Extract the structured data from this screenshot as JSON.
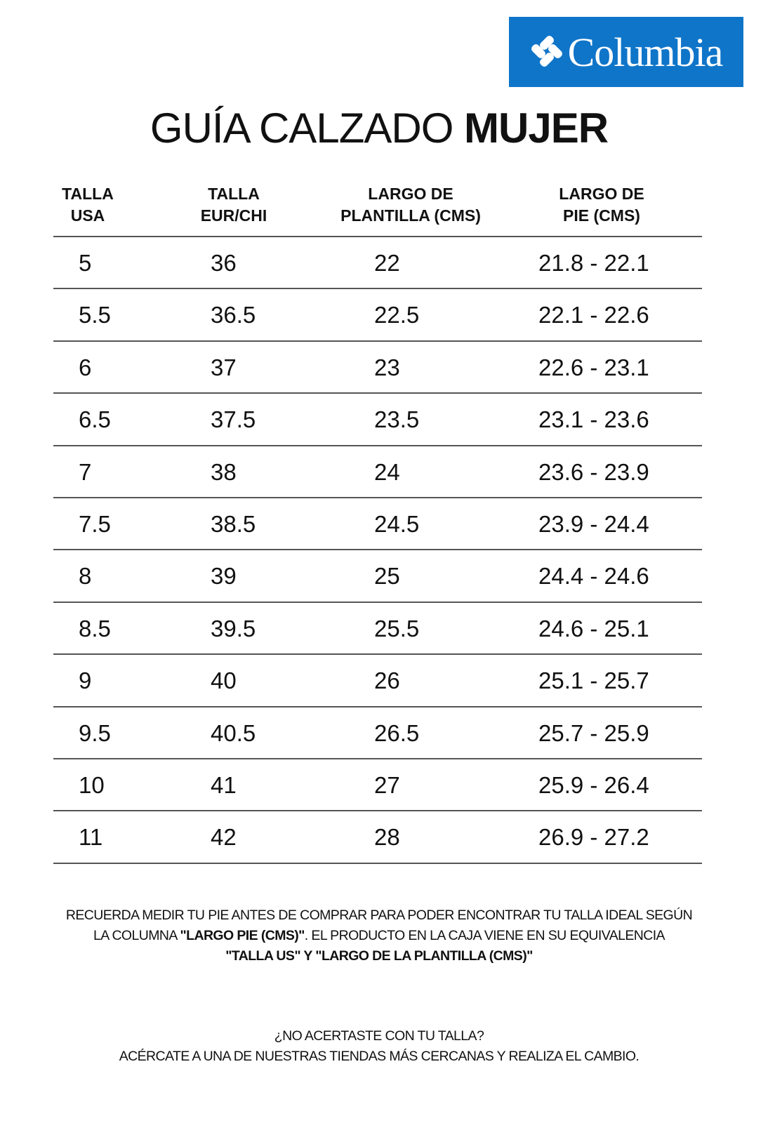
{
  "brand": {
    "logo_text": "Columbia",
    "color": "#0f75c9"
  },
  "title": {
    "regular": "GUÍA CALZADO",
    "bold": "MUJER"
  },
  "columns": [
    {
      "line1": "TALLA",
      "line2": "USA"
    },
    {
      "line1": "TALLA",
      "line2": "EUR/CHI"
    },
    {
      "line1": "LARGO DE",
      "line2": "PLANTILLA (CMS)"
    },
    {
      "line1": "LARGO DE",
      "line2": "PIE (CMS)"
    }
  ],
  "rows": [
    [
      "5",
      "36",
      "22",
      "21.8 - 22.1"
    ],
    [
      "5.5",
      "36.5",
      "22.5",
      "22.1 - 22.6"
    ],
    [
      "6",
      "37",
      "23",
      "22.6 - 23.1"
    ],
    [
      "6.5",
      "37.5",
      "23.5",
      "23.1 - 23.6"
    ],
    [
      "7",
      "38",
      "24",
      "23.6 - 23.9"
    ],
    [
      "7.5",
      "38.5",
      "24.5",
      "23.9 - 24.4"
    ],
    [
      "8",
      "39",
      "25",
      "24.4 - 24.6"
    ],
    [
      "8.5",
      "39.5",
      "25.5",
      "24.6 - 25.1"
    ],
    [
      "9",
      "40",
      "26",
      "25.1 - 25.7"
    ],
    [
      "9.5",
      "40.5",
      "26.5",
      "25.7 - 25.9"
    ],
    [
      "10",
      "41",
      "27",
      "25.9 - 26.4"
    ],
    [
      "11",
      "42",
      "28",
      "26.9 - 27.2"
    ]
  ],
  "note": {
    "line1": "RECUERDA MEDIR TU PIE ANTES DE COMPRAR PARA PODER ENCONTRAR TU TALLA IDEAL SEGÚN",
    "line2_a": "LA COLUMNA ",
    "line2_b": "\"LARGO PIE (CMS)\"",
    "line2_c": ". EL PRODUCTO EN LA CAJA VIENE EN SU EQUIVALENCIA",
    "line3": "\"TALLA US\" Y \"LARGO DE LA PLANTILLA (CMS)\""
  },
  "footer": {
    "question": "¿NO ACERTASTE CON TU TALLA?",
    "message": "ACÉRCATE A UNA DE NUESTRAS TIENDAS MÁS CERCANAS Y REALIZA EL CAMBIO."
  }
}
